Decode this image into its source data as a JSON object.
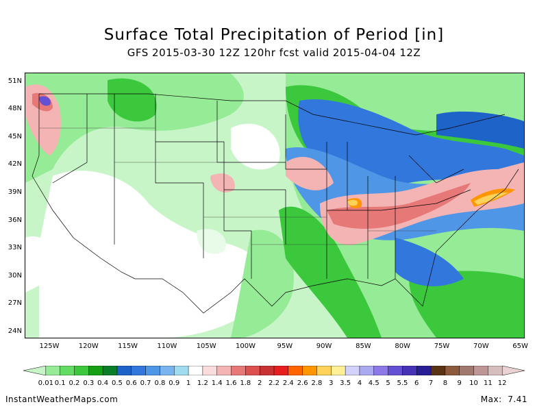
{
  "title": "Surface Total Precipitation of Period [in]",
  "subtitle": "GFS 2015-03-30 12Z 120hr fcst valid 2015-04-04 12Z",
  "lat_labels": [
    "51N",
    "48N",
    "45N",
    "42N",
    "39N",
    "36N",
    "33N",
    "30N",
    "27N",
    "24N"
  ],
  "lon_labels": [
    "125W",
    "120W",
    "115W",
    "110W",
    "105W",
    "100W",
    "95W",
    "90W",
    "85W",
    "80W",
    "75W",
    "70W",
    "65W"
  ],
  "colorbar": {
    "labels": [
      "0.01",
      "0.1",
      "0.2",
      "0.3",
      "0.4",
      "0.5",
      "0.6",
      "0.7",
      "0.8",
      "0.9",
      "1",
      "1.2",
      "1.4",
      "1.6",
      "1.8",
      "2",
      "2.2",
      "2.4",
      "2.6",
      "2.8",
      "3",
      "3.5",
      "4",
      "4.5",
      "5",
      "5.5",
      "6",
      "7",
      "8",
      "9",
      "10",
      "11",
      "12"
    ],
    "colors": [
      "#c8f5c8",
      "#96eb96",
      "#64dc64",
      "#3cc83c",
      "#14a014",
      "#0a7d28",
      "#1e64c8",
      "#3278dc",
      "#5096e6",
      "#78b4f0",
      "#a0dcf0",
      "#ffffff",
      "#fadcdc",
      "#f5b4b4",
      "#e67878",
      "#dc5050",
      "#c83232",
      "#e61e1e",
      "#ff6400",
      "#ff9600",
      "#ffd25a",
      "#fff096",
      "#d2d2fa",
      "#aaaaf0",
      "#8c78e6",
      "#6450d2",
      "#4632b4",
      "#281e96",
      "#5a3214",
      "#8c5a3c",
      "#a0786e",
      "#be9696",
      "#d7bebe",
      "#ebd2d2"
    ]
  },
  "footer": {
    "site": "InstantWeatherMaps.com",
    "max_label": "Max:",
    "max_value": "7.41"
  }
}
